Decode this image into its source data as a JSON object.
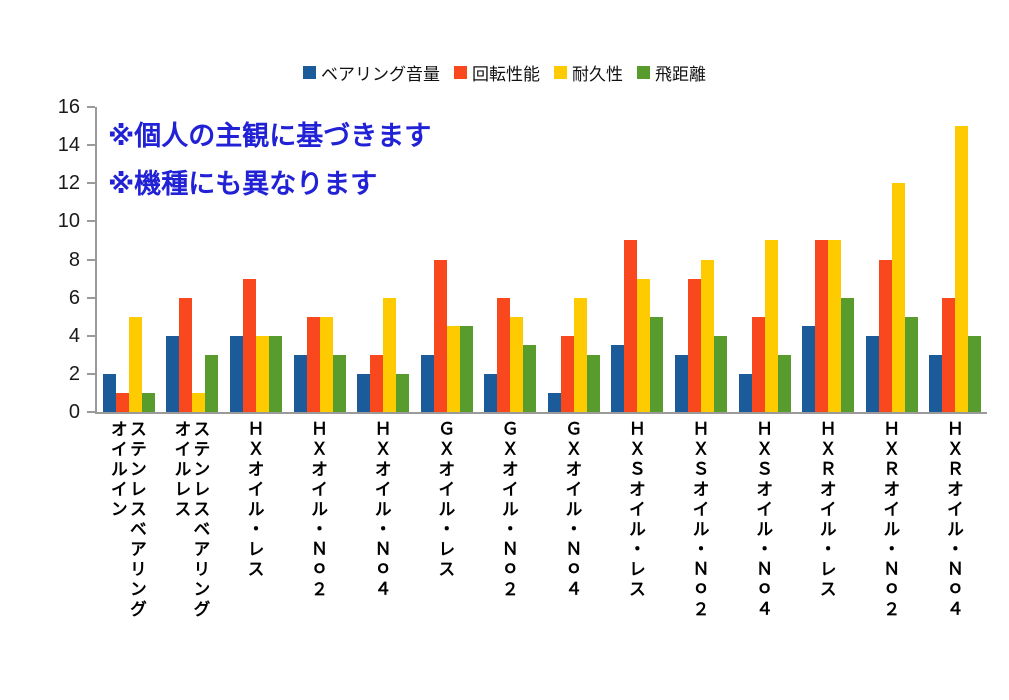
{
  "chart_data": {
    "type": "bar",
    "title": "",
    "legend_position": "top",
    "grid": false,
    "ylim": [
      0,
      16
    ],
    "ytick_step": 2,
    "annotation_color": "#2121D6",
    "annotations": [
      "※個人の主観に基づきます",
      "※機種にも異なります"
    ],
    "categories": [
      "オイルイン\nステンレスベアリング",
      "オイルレス\nステンレスベアリング",
      "ＨＸオイル・レス",
      "ＨＸオイル・Ｎｏ２",
      "ＨＸオイル・Ｎｏ４",
      "ＧＸオイル・レス",
      "ＧＸオイル・Ｎｏ２",
      "ＧＸオイル・Ｎｏ４",
      "ＨＸＳオイル・レス",
      "ＨＸＳオイル・Ｎｏ２",
      "ＨＸＳオイル・Ｎｏ４",
      "ＨＸＲオイル・レス",
      "ＨＸＲオイル・Ｎｏ２",
      "ＨＸＲオイル・Ｎｏ４"
    ],
    "series": [
      {
        "name": "ベアリング音量",
        "color": "#1B5B99",
        "values": [
          2,
          4,
          4,
          3,
          2,
          3,
          2,
          1,
          3.5,
          3,
          2,
          4.5,
          4,
          3
        ]
      },
      {
        "name": "回転性能",
        "color": "#F9481E",
        "values": [
          1,
          6,
          7,
          5,
          3,
          8,
          6,
          4,
          9,
          7,
          5,
          9,
          8,
          6
        ]
      },
      {
        "name": "耐久性",
        "color": "#FECB00",
        "values": [
          5,
          1,
          4,
          5,
          6,
          4.5,
          5,
          6,
          7,
          8,
          9,
          9,
          12,
          15
        ]
      },
      {
        "name": "飛距離",
        "color": "#599C2E",
        "values": [
          1,
          3,
          4,
          3,
          2,
          4.5,
          3.5,
          3,
          5,
          4,
          3,
          6,
          5,
          4
        ]
      }
    ]
  }
}
